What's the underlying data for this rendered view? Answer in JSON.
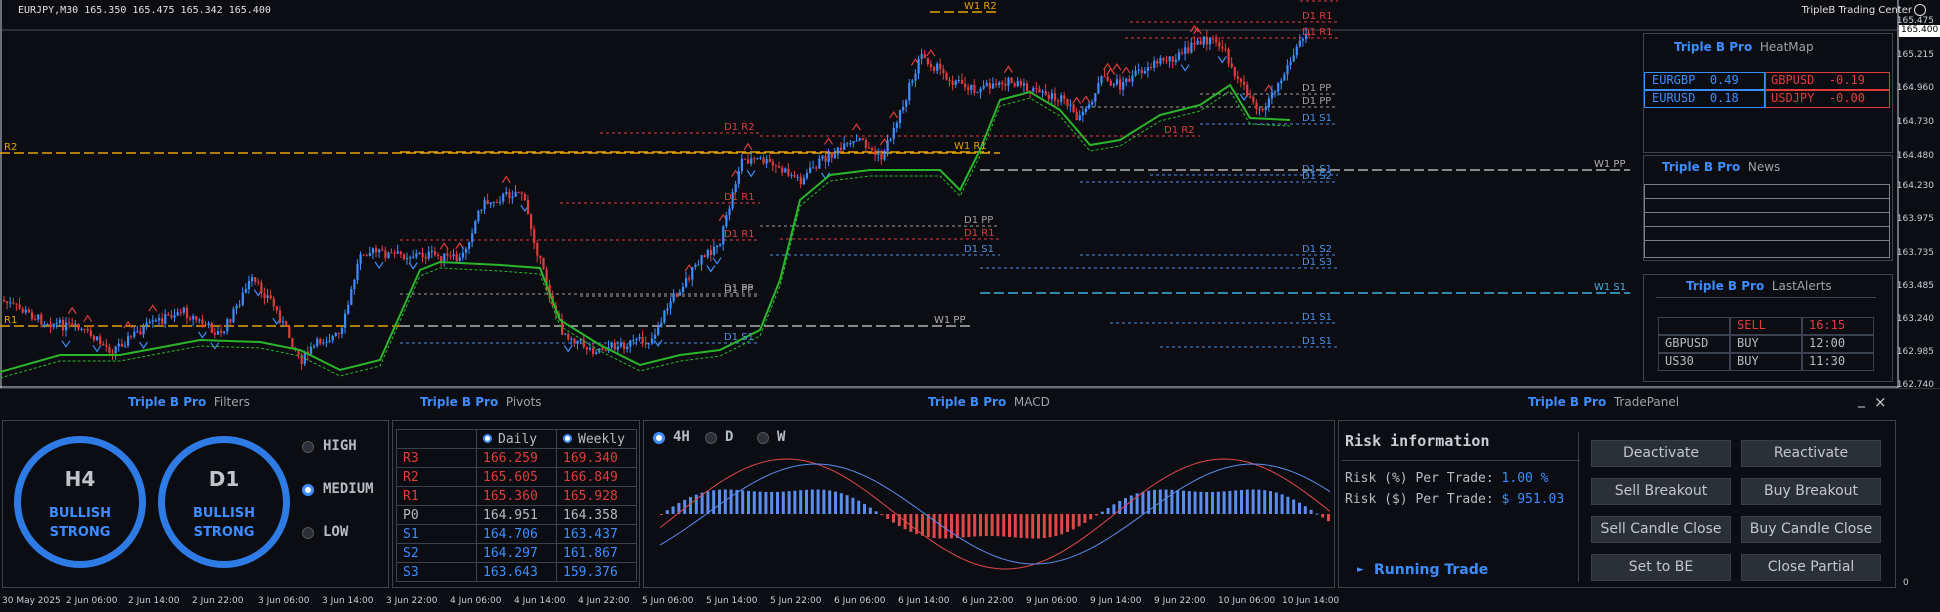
{
  "header": {
    "symbol_line": "EURJPY,M30  165.350 165.475 165.342 165.400",
    "brand": "TripleB Trading Center"
  },
  "price_axis": {
    "current": "165.400",
    "ticks": [
      "165.475",
      "165.215",
      "164.960",
      "164.730",
      "164.480",
      "164.230",
      "163.975",
      "163.735",
      "163.485",
      "163.240",
      "162.985",
      "162.740"
    ]
  },
  "levels": [
    {
      "label": "D1 R2",
      "color": "#e03c3c"
    },
    {
      "label": "W1 R2",
      "color": "#e8a200"
    },
    {
      "label": "D1 R1",
      "color": "#e03c3c"
    },
    {
      "label": "D1 R1",
      "color": "#e03c3c"
    },
    {
      "label": "D1 PP",
      "color": "#a0a0a0"
    },
    {
      "label": "D1 PP",
      "color": "#a0a0a0"
    },
    {
      "label": "D1 S1",
      "color": "#4d90e6"
    },
    {
      "label": "D1 S2",
      "color": "#4d90e6"
    },
    {
      "label": "D1 R2",
      "color": "#e03c3c"
    },
    {
      "label": "W1 R1",
      "color": "#e8a200"
    },
    {
      "label": "D1 S1",
      "color": "#4d90e6"
    },
    {
      "label": "W1 PP",
      "color": "#b0b0b0"
    },
    {
      "label": "D1 R2",
      "color": "#e03c3c"
    },
    {
      "label": "D1 S2",
      "color": "#4d90e6"
    },
    {
      "label": "D1 S3",
      "color": "#4d90e6"
    },
    {
      "label": "W1 S1",
      "color": "#3fb0e0"
    },
    {
      "label": "D1 R1",
      "color": "#e03c3c"
    },
    {
      "label": "D1 PP",
      "color": "#a0a0a0"
    },
    {
      "label": "D1 R1",
      "color": "#e03c3c"
    },
    {
      "label": "D1 PP",
      "color": "#a0a0a0"
    },
    {
      "label": "D1 S1",
      "color": "#4d90e6"
    },
    {
      "label": "W1 PP",
      "color": "#b0b0b0"
    },
    {
      "label": "D1 R1",
      "color": "#e03c3c"
    },
    {
      "label": "D1 PP",
      "color": "#a0a0a0"
    },
    {
      "label": "D1 S1",
      "color": "#4d90e6"
    },
    {
      "label": "R2",
      "color": "#e8a200"
    },
    {
      "label": "R1",
      "color": "#e8a200"
    },
    {
      "label": "D1 S1",
      "color": "#4d90e6"
    },
    {
      "label": "D1 S1",
      "color": "#4d90e6"
    }
  ],
  "heatmap": {
    "brand": "Triple B Pro",
    "title": "HeatMap",
    "rows": [
      {
        "pair": "EURGBP",
        "val": "0.49",
        "pair2": "GBPUSD",
        "val2": "-0.19"
      },
      {
        "pair": "EURUSD",
        "val": "0.18",
        "pair2": "USDJPY",
        "val2": "-0.00"
      }
    ]
  },
  "news": {
    "brand": "Triple B Pro",
    "title": "News"
  },
  "alerts": {
    "brand": "Triple B Pro",
    "title": "LastAlerts",
    "rows": [
      {
        "pair": "",
        "side": "SELL",
        "time": "16:15"
      },
      {
        "pair": "GBPUSD",
        "side": "BUY",
        "time": "12:00"
      },
      {
        "pair": "US30",
        "side": "BUY",
        "time": "11:30"
      }
    ]
  },
  "filters": {
    "brand": "Triple B Pro",
    "title": "Filters",
    "circles": [
      {
        "tf": "H4",
        "l1": "BULLISH",
        "l2": "STRONG"
      },
      {
        "tf": "D1",
        "l1": "BULLISH",
        "l2": "STRONG"
      }
    ],
    "options": [
      "HIGH",
      "MEDIUM",
      "LOW"
    ],
    "selected": "MEDIUM"
  },
  "pivots": {
    "brand": "Triple B Pro",
    "title": "Pivots",
    "col_daily": "Daily",
    "col_weekly": "Weekly",
    "rows": [
      {
        "name": "R3",
        "daily": "166.259",
        "weekly": "169.340"
      },
      {
        "name": "R2",
        "daily": "165.605",
        "weekly": "166.849"
      },
      {
        "name": "R1",
        "daily": "165.360",
        "weekly": "165.928"
      },
      {
        "name": "P0",
        "daily": "164.951",
        "weekly": "164.358"
      },
      {
        "name": "S1",
        "daily": "164.706",
        "weekly": "163.437"
      },
      {
        "name": "S2",
        "daily": "164.297",
        "weekly": "161.867"
      },
      {
        "name": "S3",
        "daily": "163.643",
        "weekly": "159.376"
      }
    ]
  },
  "macd": {
    "brand": "Triple B Pro",
    "title": "MACD",
    "timeframes": [
      "4H",
      "D",
      "W"
    ],
    "selected": "4H"
  },
  "trade": {
    "brand": "Triple B Pro",
    "title": "TradePanel",
    "risk_title": "Risk information",
    "risk_pct_label": "Risk (%) Per Trade:",
    "risk_pct": "1.00 %",
    "risk_usd_label": "Risk ($) Per Trade:",
    "risk_usd": "$ 951.03",
    "running": "Running Trade",
    "buttons": [
      "Deactivate",
      "Reactivate",
      "Sell Breakout",
      "Buy Breakout",
      "Sell Candle Close",
      "Buy Candle Close",
      "Set to BE",
      "Close Partial"
    ]
  },
  "window_controls": {
    "minimize": "_",
    "close": "×"
  },
  "time_axis": [
    "30 May 2025",
    "2 Jun 06:00",
    "2 Jun 14:00",
    "2 Jun 22:00",
    "3 Jun 06:00",
    "3 Jun 14:00",
    "3 Jun 22:00",
    "4 Jun 06:00",
    "4 Jun 14:00",
    "4 Jun 22:00",
    "5 Jun 06:00",
    "5 Jun 14:00",
    "5 Jun 22:00",
    "6 Jun 06:00",
    "6 Jun 14:00",
    "6 Jun 22:00",
    "9 Jun 06:00",
    "9 Jun 14:00",
    "9 Jun 22:00",
    "10 Jun 06:00",
    "10 Jun 14:00"
  ],
  "right_axis_zero": "0",
  "colors": {
    "up": "#3d8dff",
    "down": "#e03c3c",
    "ma": "#2bb52b",
    "accent": "#3d8dff"
  }
}
